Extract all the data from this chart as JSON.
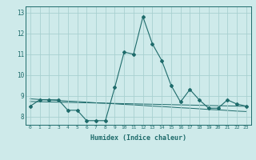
{
  "xlabel": "Humidex (Indice chaleur)",
  "background_color": "#ceeaea",
  "grid_color": "#a8d0d0",
  "line_color": "#1e6b6b",
  "x_data": [
    0,
    1,
    2,
    3,
    4,
    5,
    6,
    7,
    8,
    9,
    10,
    11,
    12,
    13,
    14,
    15,
    16,
    17,
    18,
    19,
    20,
    21,
    22,
    23
  ],
  "y_main": [
    8.5,
    8.8,
    8.8,
    8.8,
    8.3,
    8.3,
    7.8,
    7.8,
    7.8,
    9.4,
    11.1,
    11.0,
    12.8,
    11.5,
    10.7,
    9.5,
    8.7,
    9.3,
    8.8,
    8.4,
    8.4,
    8.8,
    8.6,
    8.5
  ],
  "y_trend1": [
    8.85,
    8.82,
    8.8,
    8.77,
    8.74,
    8.72,
    8.69,
    8.66,
    8.64,
    8.61,
    8.58,
    8.56,
    8.53,
    8.5,
    8.48,
    8.45,
    8.42,
    8.4,
    8.37,
    8.34,
    8.32,
    8.29,
    8.26,
    8.24
  ],
  "y_trend2": [
    8.72,
    8.71,
    8.7,
    8.69,
    8.68,
    8.67,
    8.66,
    8.65,
    8.64,
    8.63,
    8.62,
    8.61,
    8.6,
    8.59,
    8.58,
    8.57,
    8.56,
    8.55,
    8.54,
    8.53,
    8.52,
    8.51,
    8.5,
    8.49
  ],
  "ylim": [
    7.6,
    13.3
  ],
  "xlim": [
    -0.5,
    23.5
  ],
  "yticks": [
    8,
    9,
    10,
    11,
    12,
    13
  ],
  "xticks": [
    0,
    1,
    2,
    3,
    4,
    5,
    6,
    7,
    8,
    9,
    10,
    11,
    12,
    13,
    14,
    15,
    16,
    17,
    18,
    19,
    20,
    21,
    22,
    23
  ],
  "xticklabels": [
    "0",
    "1",
    "2",
    "3",
    "4",
    "5",
    "6",
    "7",
    "8",
    "9",
    "10",
    "11",
    "12",
    "13",
    "14",
    "15",
    "16",
    "17",
    "18",
    "19",
    "20",
    "21",
    "22",
    "23"
  ]
}
